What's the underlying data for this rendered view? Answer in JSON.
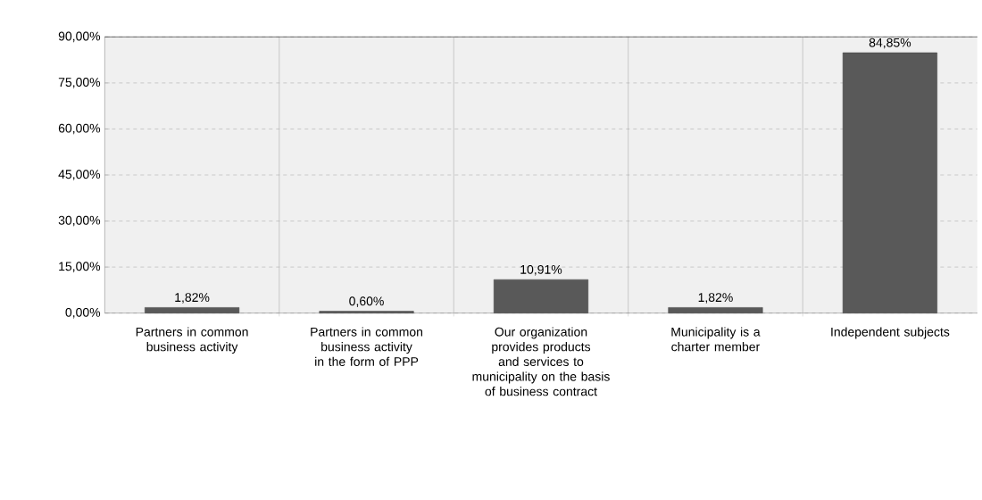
{
  "chart_data": {
    "type": "bar",
    "categories": [
      "Partners in common business activity",
      "Partners in common business activity in the form of PPP",
      "Our organization provides products and services to municipality on the basis of business contract",
      "Municipality is a charter member",
      "Independent subjects"
    ],
    "values": [
      1.82,
      0.6,
      10.91,
      1.82,
      84.85
    ],
    "value_labels": [
      "1,82%",
      "0,60%",
      "10,91%",
      "1,82%",
      "84,85%"
    ],
    "color": "#595959",
    "ylim": [
      0,
      90
    ],
    "yticks": [
      {
        "value": 0,
        "label": "0,00%"
      },
      {
        "value": 15,
        "label": "15,00%"
      },
      {
        "value": 30,
        "label": "30,00%"
      },
      {
        "value": 45,
        "label": "45,00%"
      },
      {
        "value": 60,
        "label": "60,00%"
      },
      {
        "value": 75,
        "label": "75,00%"
      },
      {
        "value": 90,
        "label": "90,00%"
      }
    ],
    "grid": true,
    "line_style": "dashed"
  }
}
